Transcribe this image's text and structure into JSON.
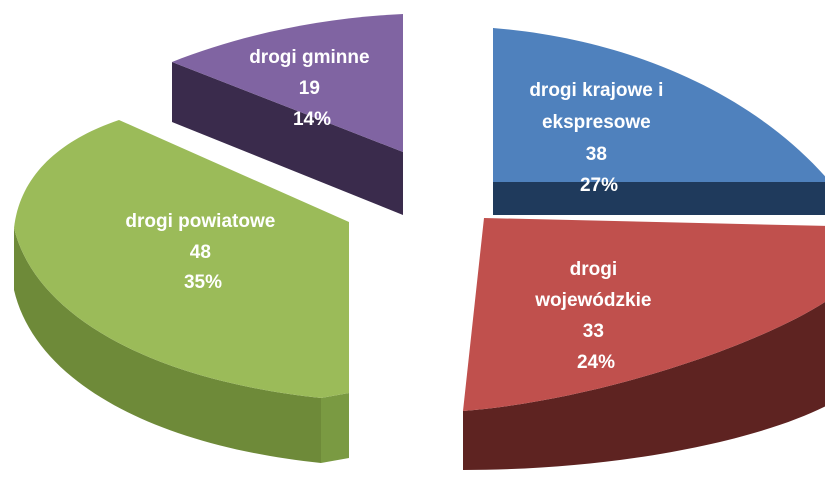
{
  "chart_data": {
    "type": "pie",
    "title": "",
    "legend": "none",
    "slices": [
      {
        "label_lines": [
          "drogi krajowe i",
          "ekspresowe"
        ],
        "value": "38",
        "percent": "27%",
        "numeric": 38,
        "color": "#4F81BD",
        "side_color": "#1F3A5C"
      },
      {
        "label_lines": [
          "drogi",
          "wojewódzkie"
        ],
        "value": "33",
        "percent": "24%",
        "numeric": 33,
        "color": "#C0504D",
        "side_color": "#5E2321"
      },
      {
        "label_lines": [
          "drogi powiatowe"
        ],
        "value": "48",
        "percent": "35%",
        "numeric": 48,
        "color": "#9BBB59",
        "side_color": "#6E8A39"
      },
      {
        "label_lines": [
          "drogi gminne"
        ],
        "value": "19",
        "percent": "14%",
        "numeric": 19,
        "color": "#8064A2",
        "side_color": "#3A2B4C"
      }
    ]
  }
}
